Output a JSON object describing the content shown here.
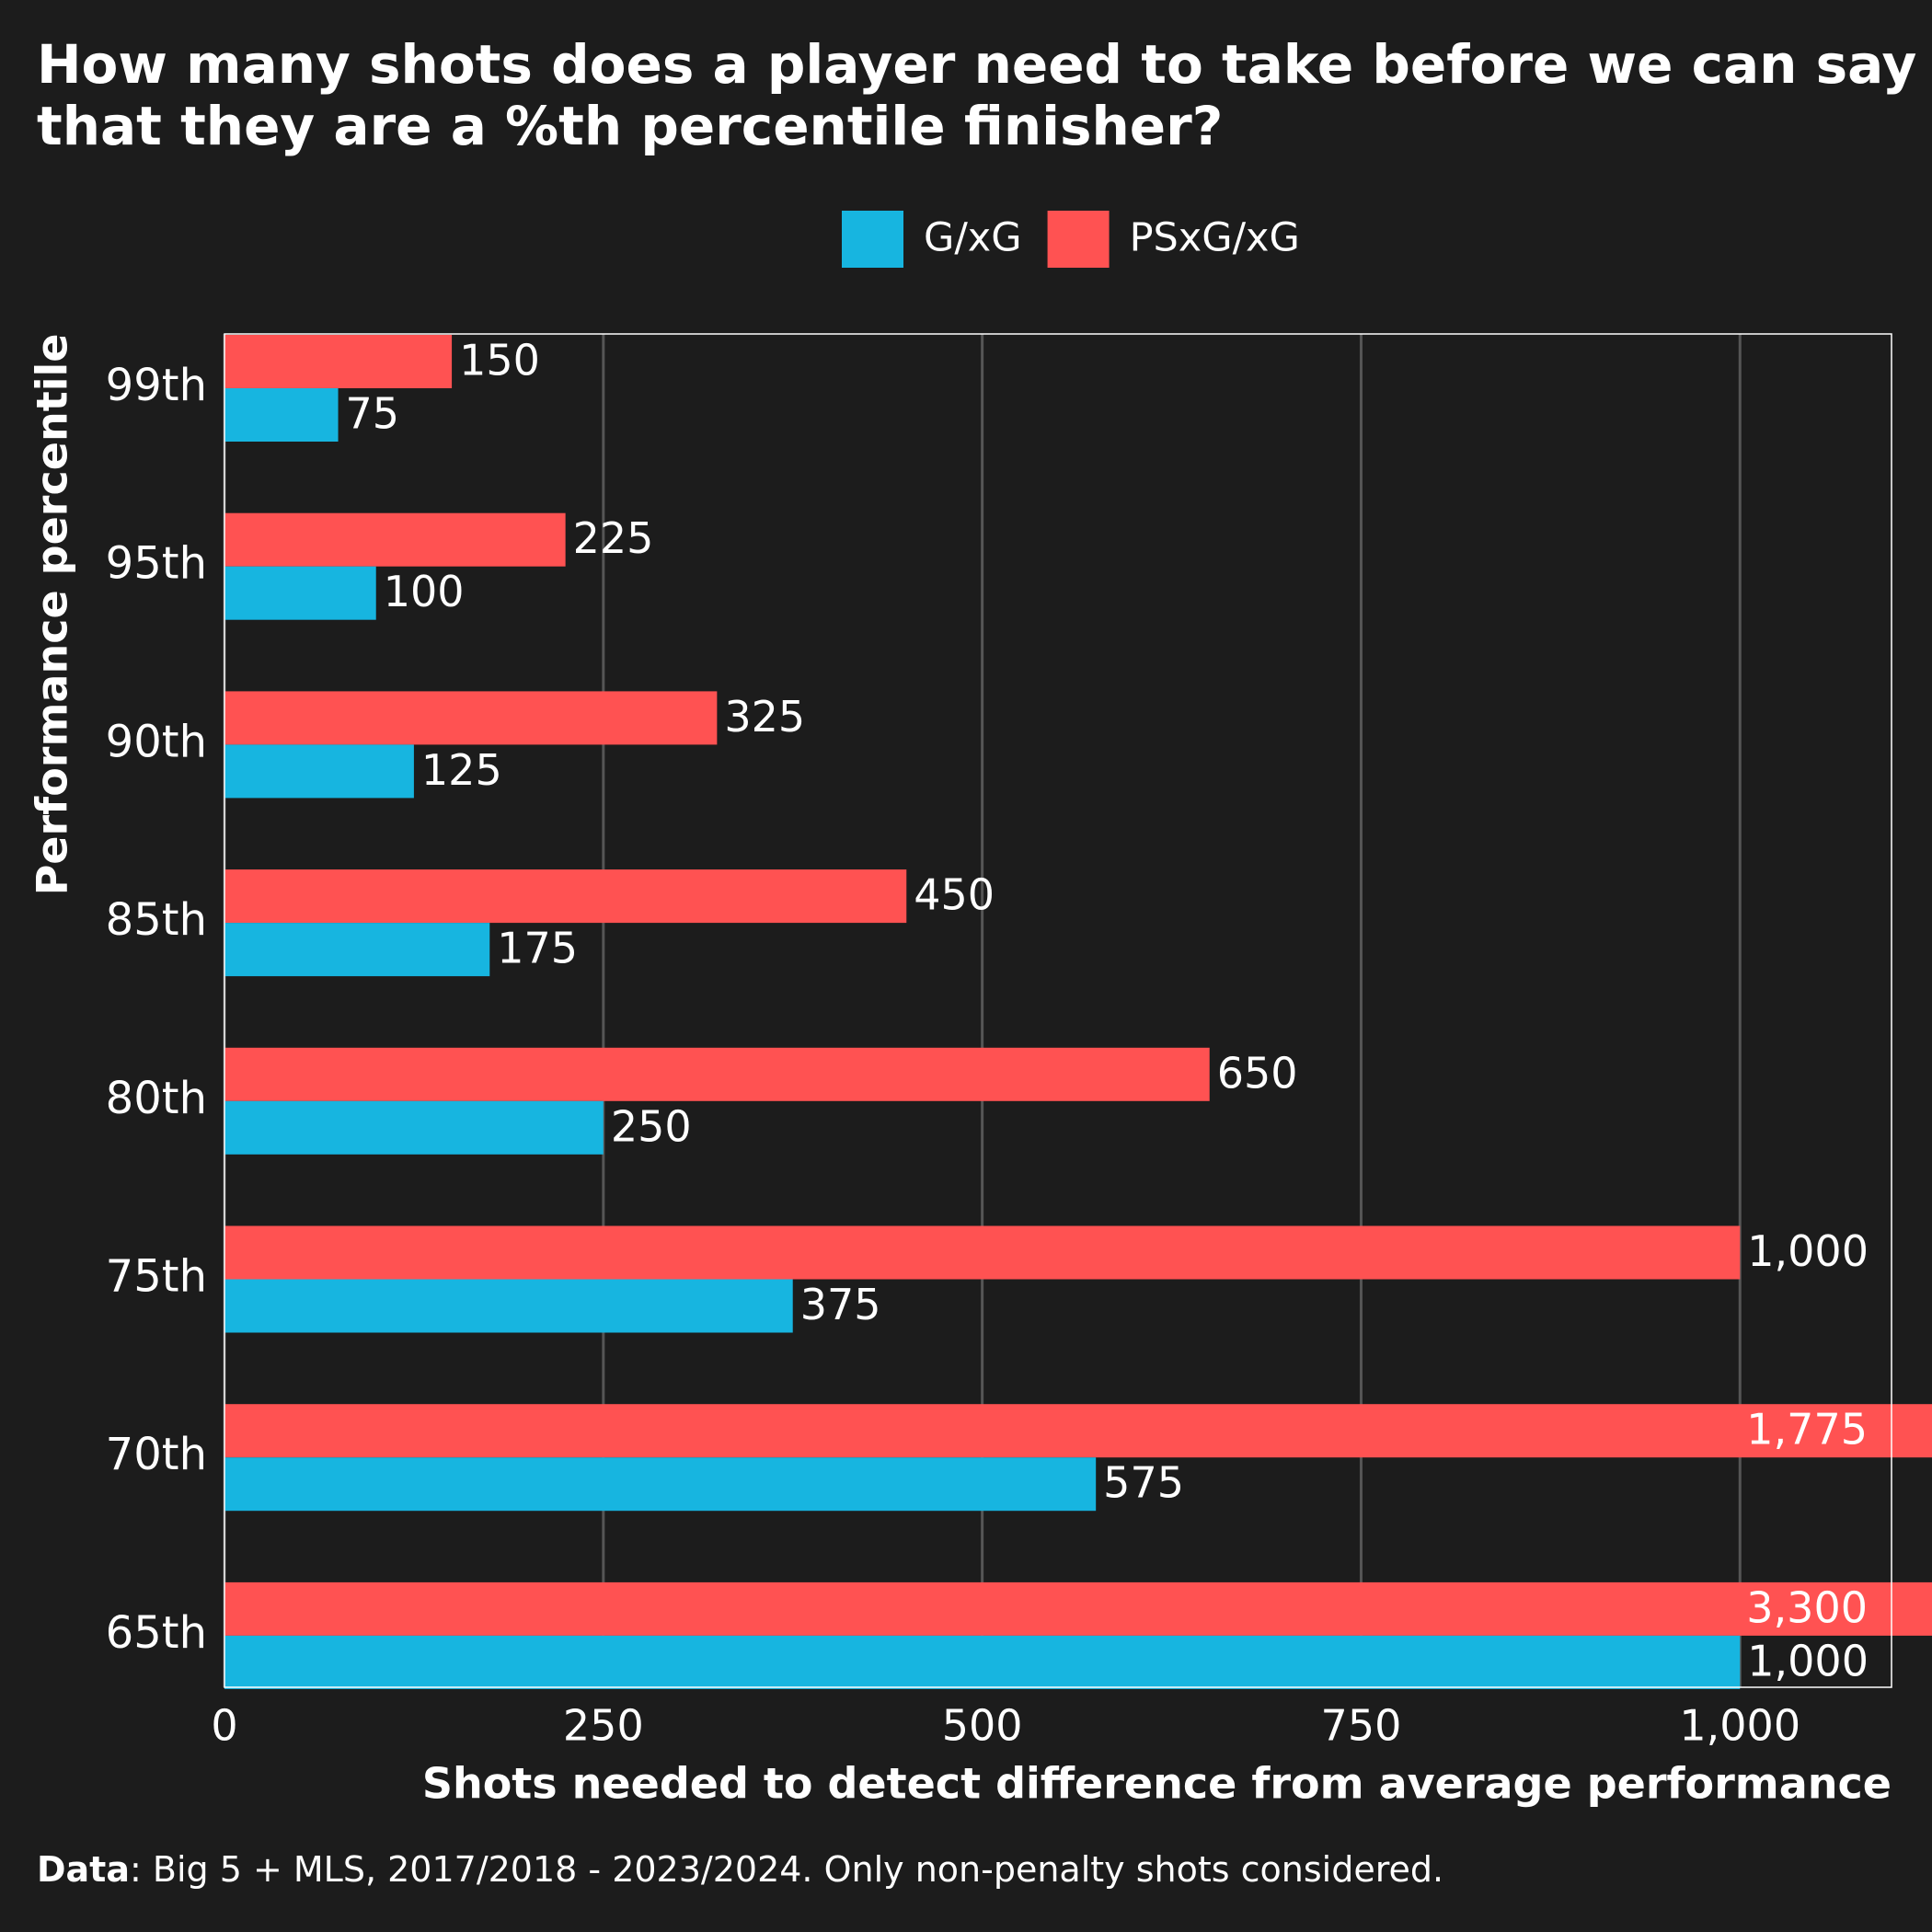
{
  "chart_data": {
    "type": "bar",
    "orientation": "horizontal",
    "title": [
      "How many shots does a player need to take before we can say",
      "that they are a %th percentile finisher?"
    ],
    "x_label": "Shots needed to detect difference from average performance",
    "y_label": "Performance percentile",
    "source_label": "Data",
    "source": ": Big 5 + MLS, 2017/2018 - 2023/2024. Only non-penalty shots considered.",
    "categories": [
      "99th",
      "95th",
      "90th",
      "85th",
      "80th",
      "75th",
      "70th",
      "65th"
    ],
    "series": [
      {
        "name": "PSxG/xG",
        "color": "#ff5252",
        "values": [
          150,
          225,
          325,
          450,
          650,
          1000,
          1775,
          3300
        ],
        "value_labels": [
          "150",
          "225",
          "325",
          "450",
          "650",
          "1,000",
          "1,775",
          "3,300"
        ]
      },
      {
        "name": "G/xG",
        "color": "#17b5e0",
        "values": [
          75,
          100,
          125,
          175,
          250,
          375,
          575,
          1000
        ],
        "value_labels": [
          "75",
          "100",
          "125",
          "175",
          "250",
          "375",
          "575",
          "1,000"
        ]
      }
    ],
    "legend_order": [
      1,
      0
    ],
    "xlim": [
      0,
      1100
    ],
    "xticks": [
      0,
      250,
      500,
      750,
      {
        "value": 1000,
        "label": "1,000"
      }
    ],
    "grid": true
  }
}
